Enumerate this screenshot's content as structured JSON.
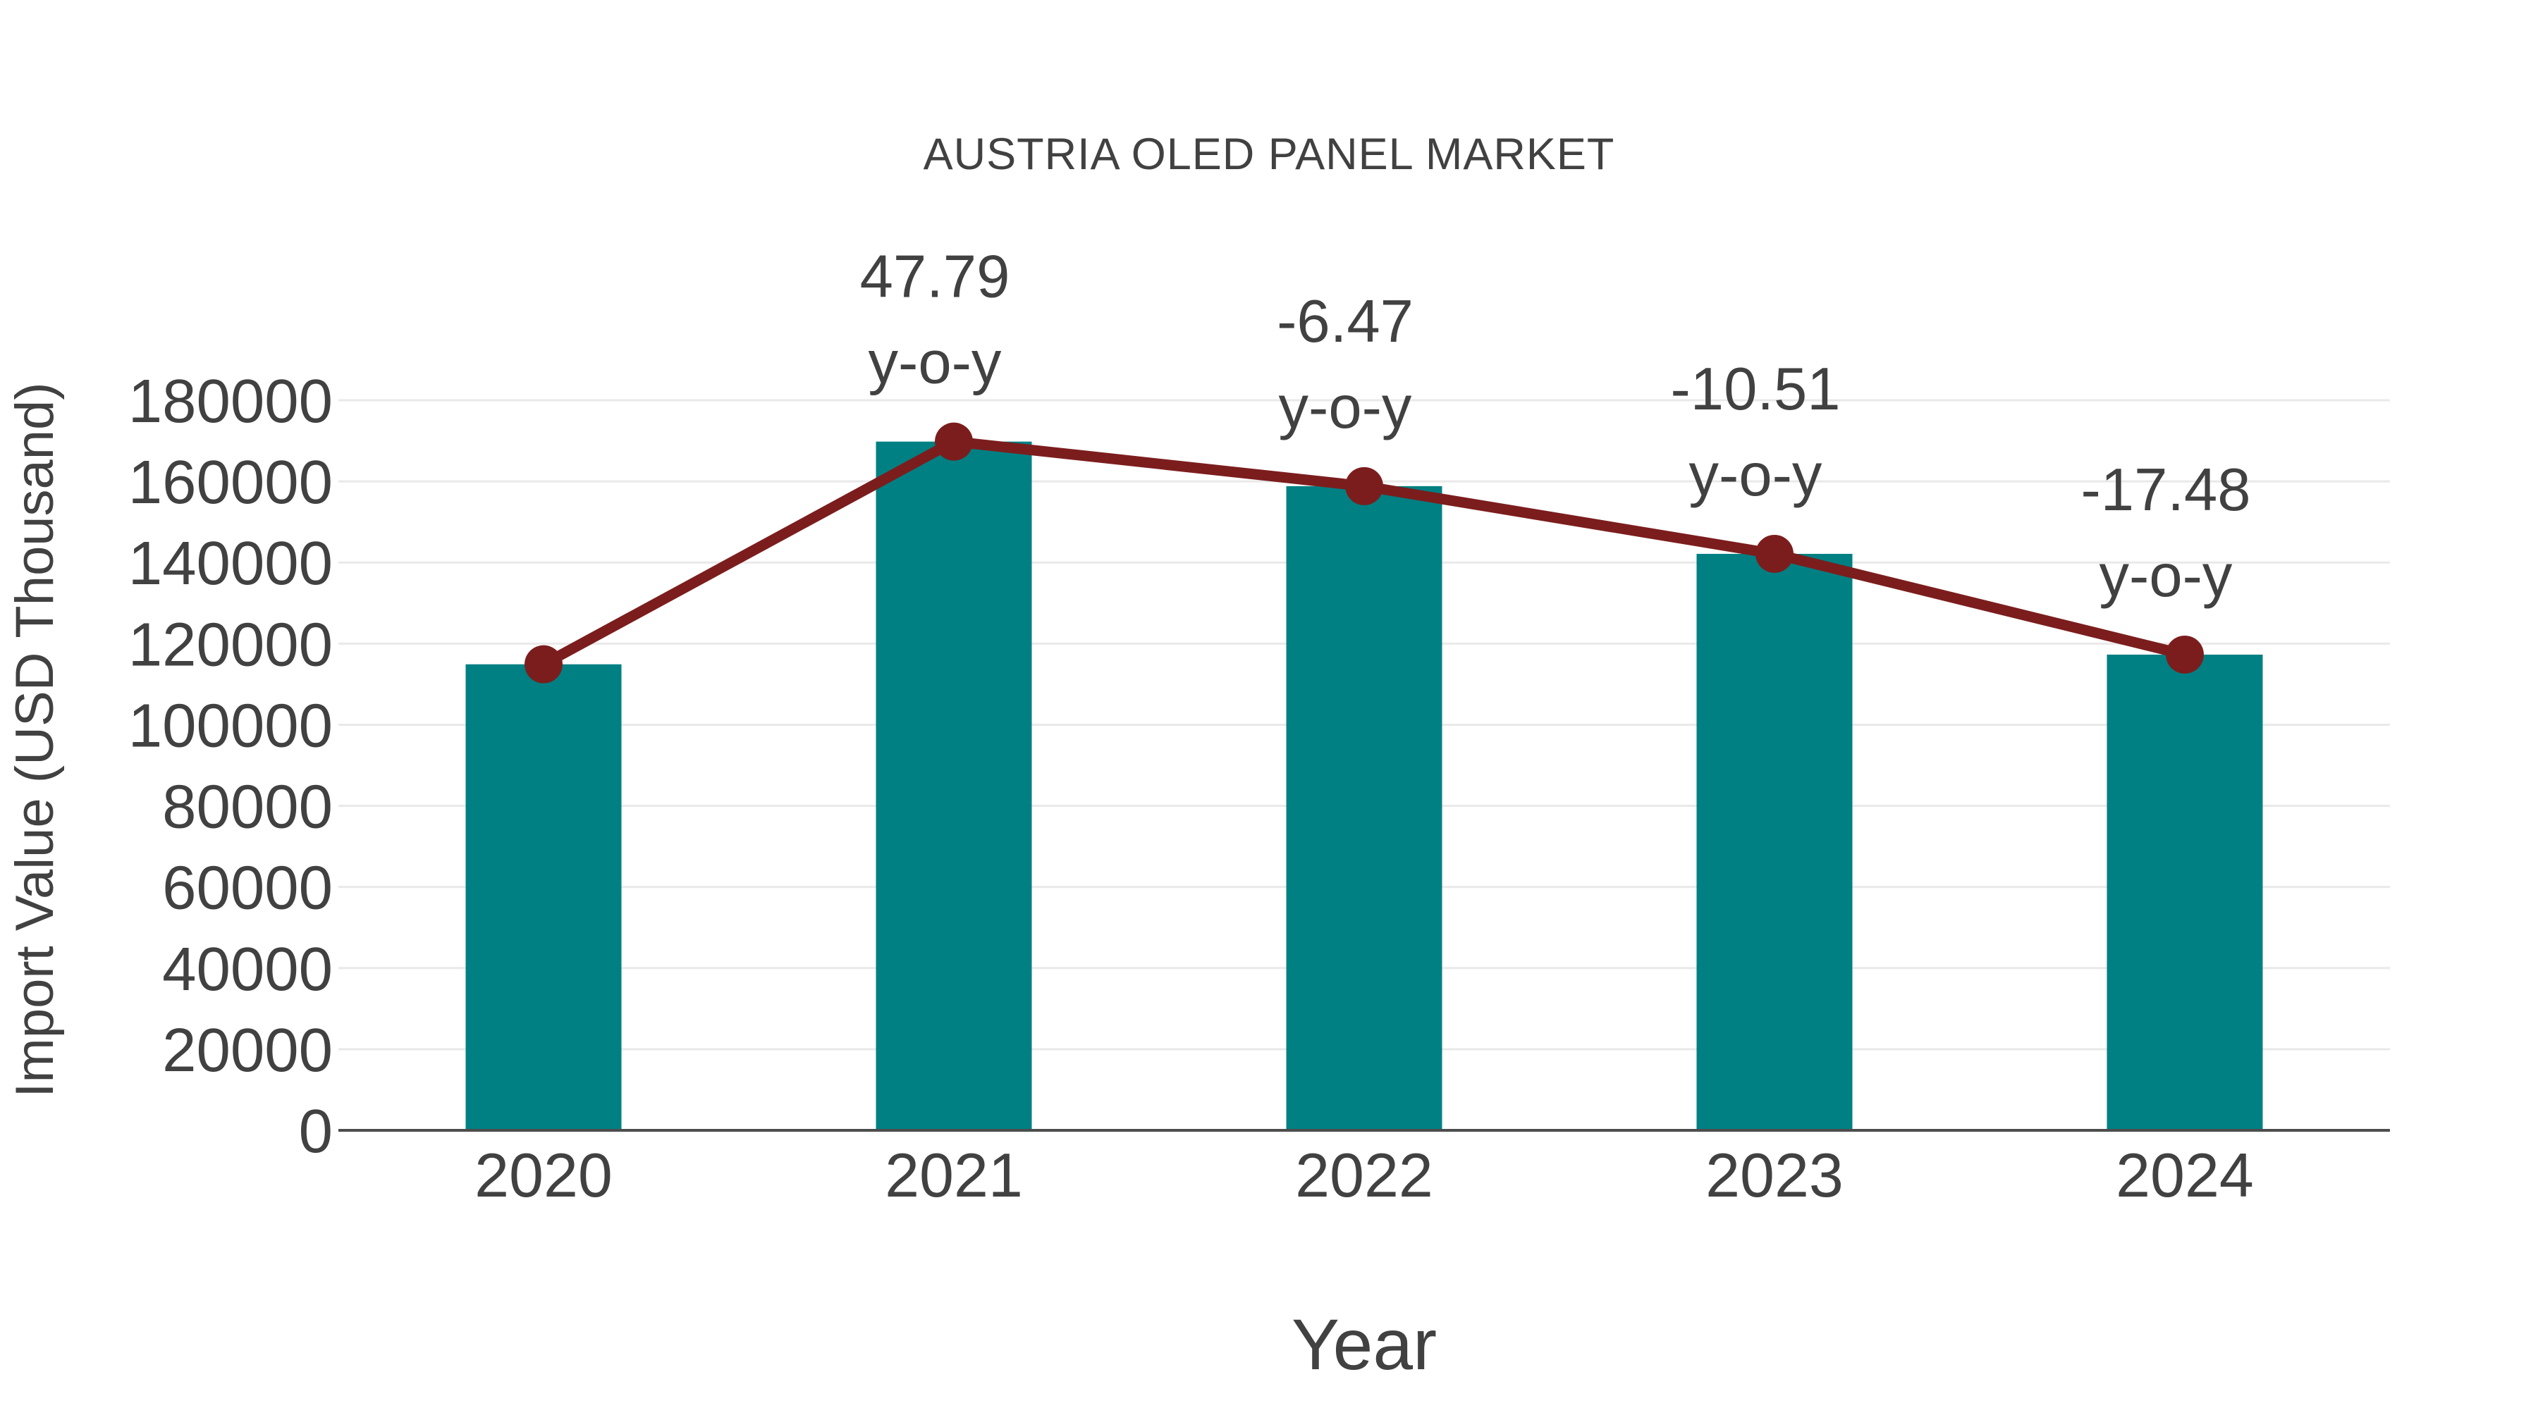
{
  "title": "AUSTRIA OLED PANEL MARKET",
  "chart_data": {
    "type": "bar",
    "title": "AUSTRIA OLED PANEL MARKET",
    "xlabel": "Year",
    "ylabel": "Import Value (USD Thousand)",
    "categories": [
      "2020",
      "2021",
      "2022",
      "2023",
      "2024"
    ],
    "series": [
      {
        "name": "Import Value",
        "type": "bar",
        "values": [
          114900,
          169811,
          158824,
          142132,
          117287
        ]
      },
      {
        "name": "Year-over-year trend",
        "type": "line",
        "values": [
          114900,
          169811,
          158824,
          142132,
          117287
        ]
      }
    ],
    "annotations": [
      {
        "category": "2021",
        "line1": "47.79",
        "line2": "y-o-y",
        "yoy_percent": 47.79
      },
      {
        "category": "2022",
        "line1": "-6.47",
        "line2": "y-o-y",
        "yoy_percent": -6.47
      },
      {
        "category": "2023",
        "line1": "-10.51",
        "line2": "y-o-y",
        "yoy_percent": -10.51
      },
      {
        "category": "2024",
        "line1": "-17.48",
        "line2": "y-o-y",
        "yoy_percent": -17.48
      }
    ],
    "ylim": [
      0,
      180000
    ],
    "yticks": [
      0,
      20000,
      40000,
      60000,
      80000,
      100000,
      120000,
      140000,
      160000,
      180000
    ],
    "grid": true,
    "legend_position": "none",
    "colors": {
      "bar": "#008083",
      "line": "#7c1d1d",
      "marker": "#7c1d1d",
      "grid": "#e9e9e9",
      "axis": "#4d4d4d",
      "text": "#414141",
      "background": "#ffffff"
    }
  }
}
